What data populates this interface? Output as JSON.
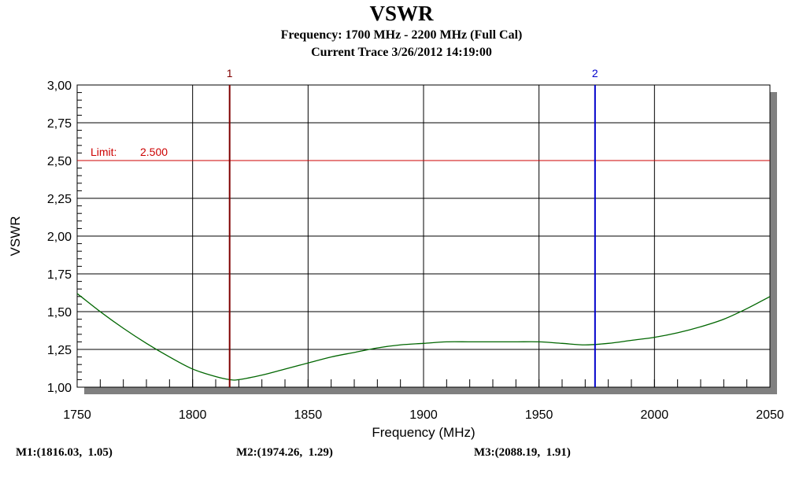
{
  "chart_data": {
    "type": "line",
    "title": "VSWR",
    "subtitle_lines": [
      "Frequency: 1700 MHz - 2200 MHz (Full Cal)",
      "Current Trace 3/26/2012 14:19:00"
    ],
    "xlabel": "Frequency (MHz)",
    "ylabel": "VSWR",
    "xlim": [
      1750,
      2050
    ],
    "ylim": [
      1.0,
      3.0
    ],
    "x_ticks": [
      "1750",
      "1800",
      "1850",
      "1900",
      "1950",
      "2000",
      "2050"
    ],
    "y_ticks": [
      "1,00",
      "1,25",
      "1,50",
      "1,75",
      "2,00",
      "2,25",
      "2,50",
      "2,75",
      "3,00"
    ],
    "grid": true,
    "limit": {
      "label": "Limit:",
      "value_text": "2.500",
      "value": 2.5,
      "color": "#cc0000"
    },
    "series": [
      {
        "color": "#006600",
        "x": [
          1750,
          1760,
          1770,
          1780,
          1790,
          1800,
          1810,
          1816,
          1820,
          1830,
          1840,
          1850,
          1860,
          1870,
          1880,
          1890,
          1900,
          1910,
          1920,
          1930,
          1940,
          1950,
          1960,
          1970,
          1980,
          1990,
          2000,
          2010,
          2020,
          2030,
          2040,
          2050
        ],
        "y": [
          1.62,
          1.5,
          1.39,
          1.29,
          1.2,
          1.12,
          1.07,
          1.05,
          1.05,
          1.08,
          1.12,
          1.16,
          1.2,
          1.23,
          1.26,
          1.28,
          1.29,
          1.3,
          1.3,
          1.3,
          1.3,
          1.3,
          1.29,
          1.28,
          1.29,
          1.31,
          1.33,
          1.36,
          1.4,
          1.45,
          1.52,
          1.6
        ]
      }
    ],
    "markers": [
      {
        "label": "1",
        "x": 1816.03,
        "color": "#800000"
      },
      {
        "label": "2",
        "x": 1974.26,
        "color": "#0000cc"
      }
    ],
    "readouts": [
      "M1:(1816.03,  1.05)",
      "M2:(1974.26,  1.29)",
      "M3:(2088.19,  1.91)"
    ]
  }
}
